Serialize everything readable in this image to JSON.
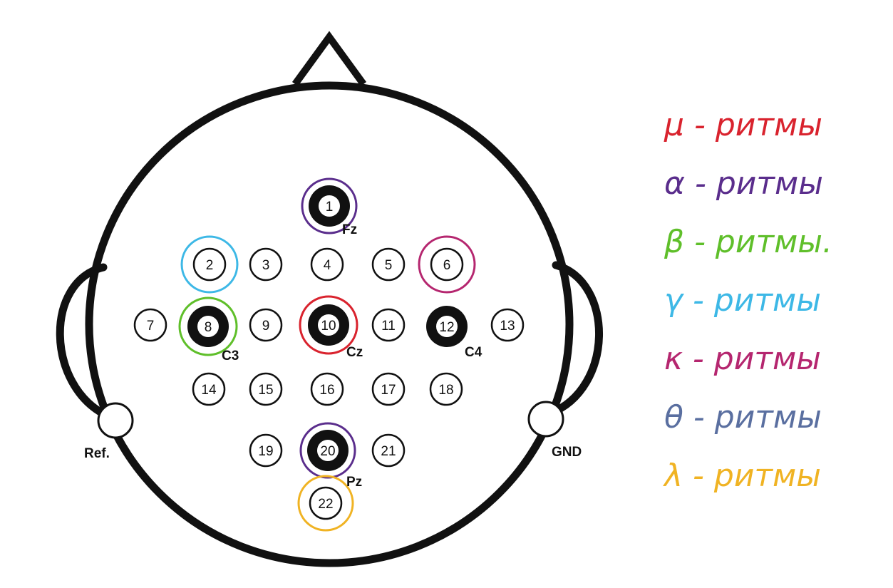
{
  "electrodes": [
    {
      "id": "1",
      "label": "1",
      "active": true
    },
    {
      "id": "2",
      "label": "2",
      "active": false
    },
    {
      "id": "3",
      "label": "3",
      "active": false
    },
    {
      "id": "4",
      "label": "4",
      "active": false
    },
    {
      "id": "5",
      "label": "5",
      "active": false
    },
    {
      "id": "6",
      "label": "6",
      "active": false
    },
    {
      "id": "7",
      "label": "7",
      "active": false
    },
    {
      "id": "8",
      "label": "8",
      "active": true
    },
    {
      "id": "9",
      "label": "9",
      "active": false
    },
    {
      "id": "10",
      "label": "10",
      "active": true
    },
    {
      "id": "11",
      "label": "11",
      "active": false
    },
    {
      "id": "12",
      "label": "12",
      "active": true
    },
    {
      "id": "13",
      "label": "13",
      "active": false
    },
    {
      "id": "14",
      "label": "14",
      "active": false
    },
    {
      "id": "15",
      "label": "15",
      "active": false
    },
    {
      "id": "16",
      "label": "16",
      "active": false
    },
    {
      "id": "17",
      "label": "17",
      "active": false
    },
    {
      "id": "18",
      "label": "18",
      "active": false
    },
    {
      "id": "19",
      "label": "19",
      "active": false
    },
    {
      "id": "20",
      "label": "20",
      "active": true
    },
    {
      "id": "21",
      "label": "21",
      "active": false
    },
    {
      "id": "22",
      "label": "22",
      "active": false
    }
  ],
  "site_labels": {
    "fz": "Fz",
    "c3": "C3",
    "cz": "Cz",
    "c4": "C4",
    "pz": "Pz",
    "ref": "Ref.",
    "gnd": "GND"
  },
  "highlights": [
    {
      "electrode": "1",
      "color": "#5a2d8c"
    },
    {
      "electrode": "2",
      "color": "#3db8e6"
    },
    {
      "electrode": "6",
      "color": "#b5266f"
    },
    {
      "electrode": "8",
      "color": "#5fbf2a"
    },
    {
      "electrode": "10",
      "color": "#d9232e"
    },
    {
      "electrode": "20",
      "color": "#5a2d8c"
    },
    {
      "electrode": "22",
      "color": "#f0b323"
    }
  ],
  "legend": [
    {
      "symbol": "μ",
      "text": "μ - ритмы",
      "color": "#d9232e",
      "icon": "mu-symbol"
    },
    {
      "symbol": "α",
      "text": "α - ритмы",
      "color": "#5a2d8c",
      "icon": "alpha-symbol"
    },
    {
      "symbol": "β",
      "text": "β - ритмы.",
      "color": "#5fbf2a",
      "icon": "beta-symbol"
    },
    {
      "symbol": "γ",
      "text": "γ - ритмы",
      "color": "#3db8e6",
      "icon": "gamma-symbol"
    },
    {
      "symbol": "κ",
      "text": "κ - ритмы",
      "color": "#b5266f",
      "icon": "kappa-symbol"
    },
    {
      "symbol": "θ",
      "text": "θ - ритмы",
      "color": "#5a6fa0",
      "icon": "theta-symbol"
    },
    {
      "symbol": "λ",
      "text": "λ - ритмы",
      "color": "#f0b323",
      "icon": "lambda-symbol"
    }
  ],
  "colors": {
    "outline": "#111111",
    "background": "#ffffff"
  }
}
